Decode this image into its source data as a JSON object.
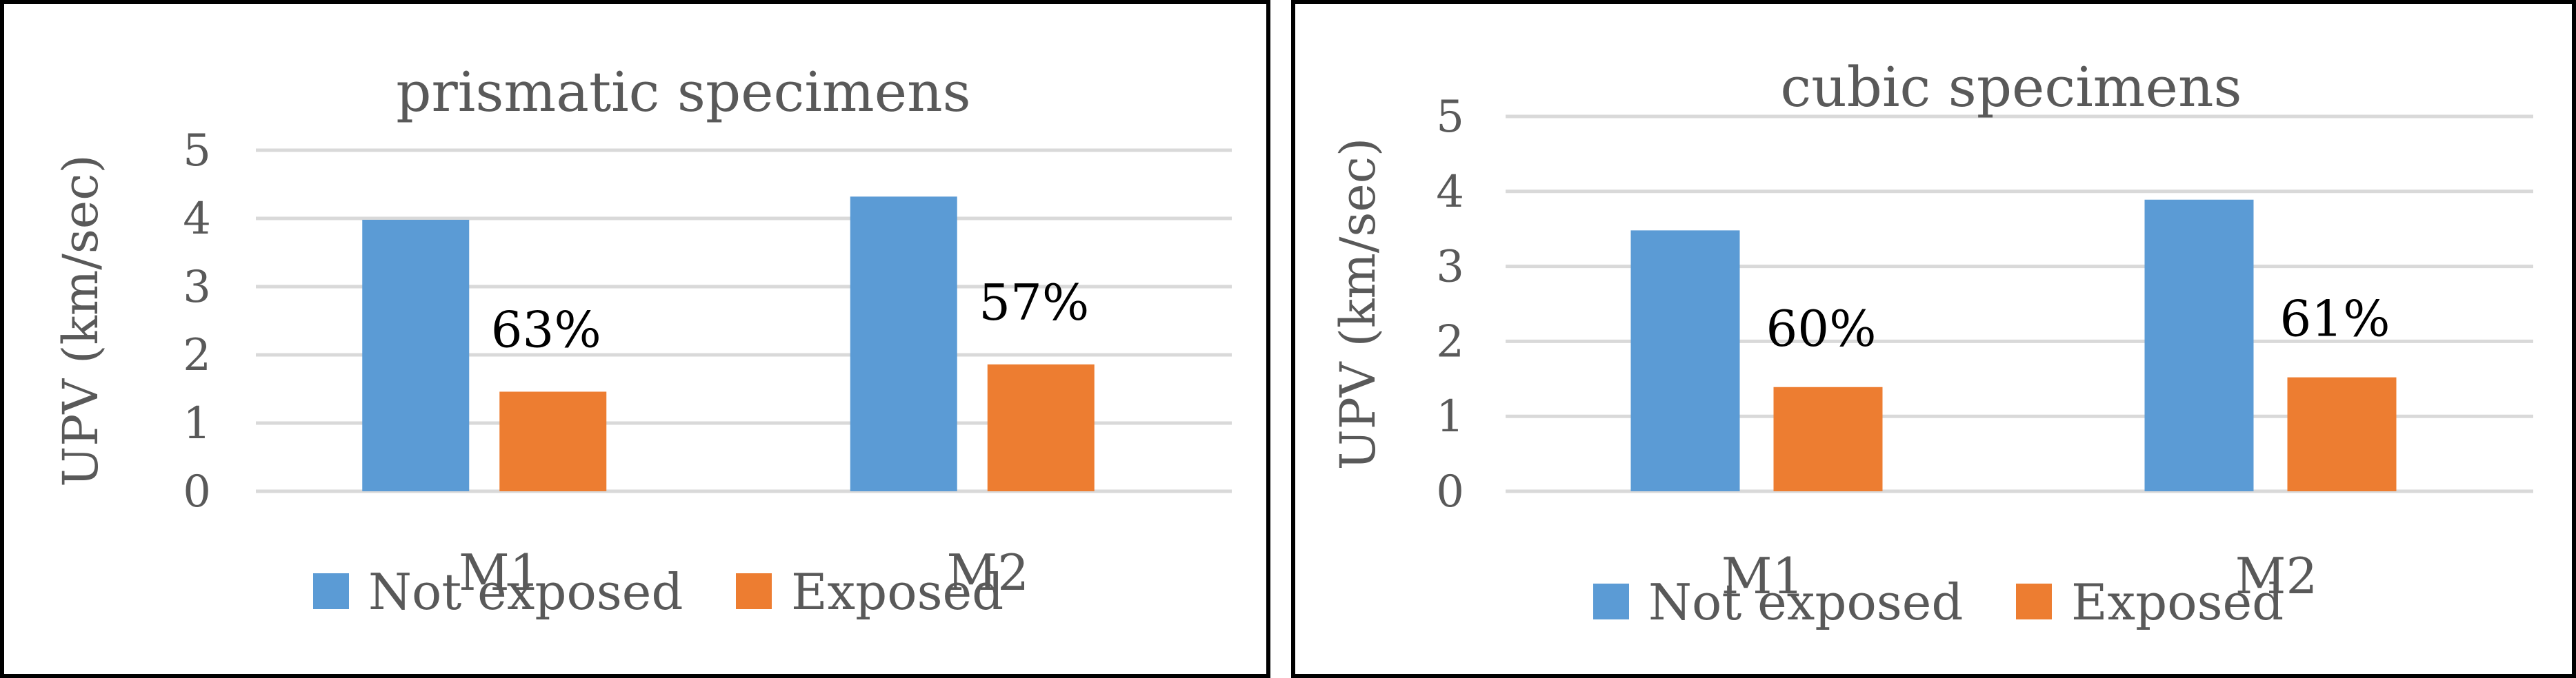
{
  "colors": {
    "not_exposed": "#5b9bd5",
    "exposed": "#ed7d31",
    "grid": "#d9d9d9",
    "text": "#595959"
  },
  "chart_data": [
    {
      "type": "bar",
      "title": "prismatic specimens",
      "ylabel": "UPV (km/sec)",
      "xlabel": "",
      "categories": [
        "M1",
        "M2"
      ],
      "ylim": [
        0,
        5
      ],
      "yticks": [
        "0",
        "1",
        "2",
        "3",
        "4",
        "5"
      ],
      "grid": true,
      "legend_position": "bottom",
      "series": [
        {
          "name": "Not exposed",
          "values": [
            3.98,
            4.32
          ]
        },
        {
          "name": "Exposed",
          "values": [
            1.46,
            1.86
          ]
        }
      ],
      "annotations": [
        "63%",
        "57%"
      ]
    },
    {
      "type": "bar",
      "title": "cubic specimens",
      "ylabel": "UPV (km/sec)",
      "xlabel": "",
      "categories": [
        "M1",
        "M2"
      ],
      "ylim": [
        0,
        5
      ],
      "yticks": [
        "0",
        "1",
        "2",
        "3",
        "4",
        "5"
      ],
      "grid": true,
      "legend_position": "bottom",
      "series": [
        {
          "name": "Not exposed",
          "values": [
            3.48,
            3.89
          ]
        },
        {
          "name": "Exposed",
          "values": [
            1.39,
            1.52
          ]
        }
      ],
      "annotations": [
        "60%",
        "61%"
      ]
    }
  ]
}
